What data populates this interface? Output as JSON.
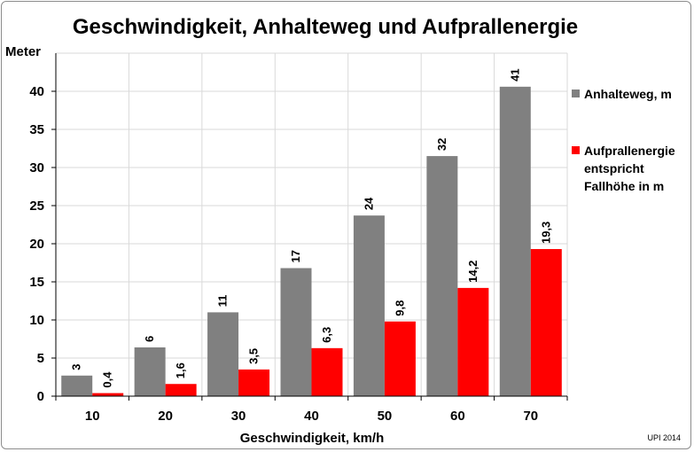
{
  "chart_data": {
    "type": "bar",
    "title": "Geschwindigkeit, Anhalteweg und Aufprallenergie",
    "xlabel": "Geschwindigkeit,  km/h",
    "ylabel": "Meter",
    "categories": [
      "10",
      "20",
      "30",
      "40",
      "50",
      "60",
      "70"
    ],
    "ylim": [
      0,
      45
    ],
    "yticks": [
      0,
      5,
      10,
      15,
      20,
      25,
      30,
      35,
      40
    ],
    "grid": true,
    "legend_position": "right",
    "series": [
      {
        "name": "Anhalteweg, m",
        "color": "#808080",
        "values": [
          2.7,
          6.4,
          11,
          16.8,
          23.7,
          31.5,
          40.6
        ],
        "labels": [
          "3",
          "6",
          "11",
          "17",
          "24",
          "32",
          "41"
        ]
      },
      {
        "name": "Aufprallenergie entspricht Fallhöhe in m",
        "legend_lines": [
          "Aufprallenergie",
          "entspricht",
          "Fallhöhe in m"
        ],
        "color": "#ff0000",
        "values": [
          0.4,
          1.6,
          3.5,
          6.3,
          9.8,
          14.2,
          19.3
        ],
        "labels": [
          "0,4",
          "1,6",
          "3,5",
          "6,3",
          "9,8",
          "14,2",
          "19,3"
        ]
      }
    ]
  },
  "credit": "UPI 2014"
}
